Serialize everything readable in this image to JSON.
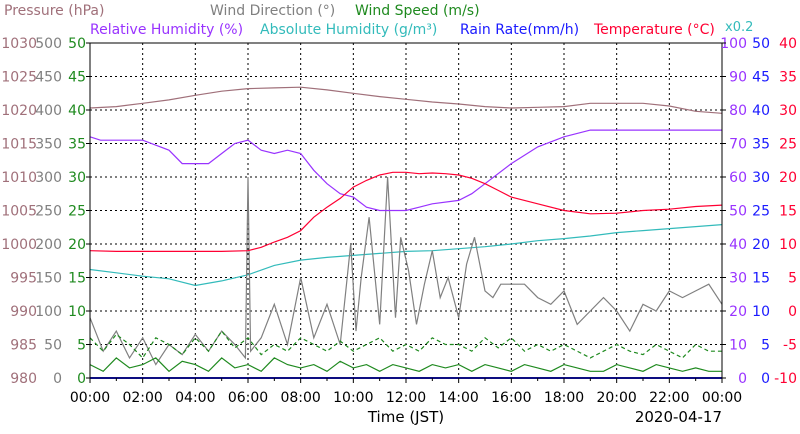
{
  "chart_data": {
    "type": "line",
    "date": "2020-04-17",
    "xlabel": "Time (JST)",
    "x_ticks": [
      "00:00",
      "02:00",
      "04:00",
      "06:00",
      "08:00",
      "10:00",
      "12:00",
      "14:00",
      "16:00",
      "18:00",
      "20:00",
      "22:00",
      "00:00"
    ],
    "x_range_hours": [
      0,
      24
    ],
    "grid": true,
    "legend_title_line1": [
      {
        "key": "pressure",
        "text": "Pressure (hPa)",
        "color": "#a0707a"
      },
      {
        "key": "wind_dir",
        "text": "Wind Direction (°)",
        "color": "#808080"
      },
      {
        "key": "wind_speed",
        "text": "Wind Speed (m/s)",
        "color": "#1f8a1f"
      }
    ],
    "legend_title_line2": [
      {
        "key": "rh",
        "text": "Relative Humidity (%)",
        "color": "#9933ff"
      },
      {
        "key": "ah",
        "text": "Absolute Humidity (g/m³)",
        "color": "#33bbbb"
      },
      {
        "key": "rain",
        "text": "Rain Rate(mm/h)",
        "color": "#1a1aff"
      },
      {
        "key": "temp",
        "text": "Temperature (°C)",
        "color": "#ff0033"
      }
    ],
    "rain_multiplier_label": "x0.2",
    "axes": {
      "pressure": {
        "min": 980,
        "max": 1030,
        "ticks": [
          "1030",
          "1025",
          "1020",
          "1015",
          "1010",
          "1005",
          "1000",
          "995",
          "990",
          "985",
          "980"
        ],
        "color": "#a0707a"
      },
      "wind_dir": {
        "min": 0,
        "max": 500,
        "ticks": [
          "500",
          "450",
          "400",
          "350",
          "300",
          "250",
          "200",
          "150",
          "100",
          "50",
          "0"
        ],
        "color": "#808080"
      },
      "wind_speed": {
        "min": 0,
        "max": 50,
        "ticks": [
          "50",
          "45",
          "40",
          "35",
          "30",
          "25",
          "20",
          "15",
          "10",
          "5",
          "0"
        ],
        "color": "#1f8a1f"
      },
      "rh": {
        "min": 0,
        "max": 100,
        "ticks": [
          "100",
          "90",
          "80",
          "70",
          "60",
          "50",
          "40",
          "30",
          "20",
          "10",
          "0"
        ],
        "color": "#9933ff"
      },
      "rain": {
        "min": 0,
        "max": 50,
        "ticks": [
          "50",
          "45",
          "40",
          "35",
          "30",
          "25",
          "20",
          "15",
          "10",
          "5",
          "0"
        ],
        "color": "#1a1aff"
      },
      "temp": {
        "min": -10,
        "max": 40,
        "ticks": [
          "40",
          "35",
          "30",
          "25",
          "20",
          "15",
          "10",
          "5",
          "0",
          "-5",
          "-10"
        ],
        "color": "#ff0033"
      }
    },
    "series": [
      {
        "key": "pressure",
        "name": "Pressure (hPa)",
        "color": "#a0707a",
        "x": [
          0,
          1,
          2,
          3,
          4,
          5,
          6,
          7,
          8,
          9,
          10,
          11,
          12,
          13,
          14,
          15,
          16,
          17,
          18,
          19,
          20,
          21,
          22,
          23,
          24
        ],
        "y": [
          1020.3,
          1020.5,
          1021.0,
          1021.5,
          1022.2,
          1022.8,
          1023.2,
          1023.3,
          1023.4,
          1023.0,
          1022.5,
          1022.0,
          1021.6,
          1021.2,
          1020.9,
          1020.5,
          1020.3,
          1020.4,
          1020.5,
          1021.0,
          1021.0,
          1021.0,
          1020.6,
          1019.8,
          1019.5
        ]
      },
      {
        "key": "rh",
        "name": "Relative Humidity (%)",
        "color": "#9933ff",
        "x": [
          0,
          0.4,
          1,
          2,
          3,
          3.5,
          4.5,
          5,
          5.5,
          6,
          6.5,
          7,
          7.5,
          8,
          8.5,
          9,
          9.5,
          10,
          10.5,
          11,
          11.5,
          12,
          12.5,
          13,
          14,
          14.5,
          15,
          16,
          17,
          18,
          19,
          20,
          21,
          22,
          23,
          24
        ],
        "y": [
          72,
          71,
          71,
          71,
          68,
          64,
          64,
          67,
          70,
          71,
          68,
          67,
          68,
          67,
          62,
          58,
          55,
          54,
          51,
          50,
          50,
          50,
          51,
          52,
          53,
          55,
          58,
          64,
          69,
          72,
          74,
          74,
          74,
          74,
          74,
          74
        ]
      },
      {
        "key": "temp",
        "name": "Temperature (°C)",
        "color": "#ff0033",
        "x": [
          0,
          1,
          2,
          3,
          4,
          5,
          6,
          6.5,
          7,
          7.5,
          8,
          8.5,
          9,
          9.5,
          10,
          10.5,
          11,
          11.5,
          12,
          12.5,
          13,
          13.5,
          14,
          14.5,
          15,
          15.5,
          16,
          17,
          18,
          19,
          20,
          21,
          22,
          23,
          24
        ],
        "y": [
          9,
          8.9,
          8.9,
          8.9,
          8.9,
          8.9,
          9,
          9.5,
          10.3,
          11,
          12,
          14,
          15.5,
          16.8,
          18.5,
          19.5,
          20.3,
          20.7,
          20.7,
          20.5,
          20.6,
          20.5,
          20.3,
          19.8,
          19,
          18,
          17,
          16,
          15,
          14.5,
          14.6,
          15,
          15.2,
          15.6,
          15.8
        ]
      },
      {
        "key": "ah",
        "name": "Absolute Humidity (g/m³)",
        "color": "#33bbbb",
        "x": [
          0,
          1,
          2,
          3,
          4,
          5,
          6,
          7,
          8,
          9,
          10,
          11,
          12,
          13,
          14,
          15,
          16,
          17,
          18,
          19,
          20,
          21,
          22,
          23,
          24
        ],
        "y": [
          16.2,
          15.7,
          15.2,
          14.8,
          13.8,
          14.5,
          15.4,
          16.8,
          17.6,
          18.0,
          18.3,
          18.6,
          18.9,
          19.0,
          19.3,
          19.6,
          20.0,
          20.5,
          20.8,
          21.2,
          21.7,
          22.0,
          22.3,
          22.6,
          22.9
        ]
      },
      {
        "key": "wind_dir",
        "name": "Wind Direction (°)",
        "color": "#808080",
        "x": [
          0,
          0.5,
          1,
          1.5,
          2,
          2.5,
          3,
          3.5,
          4,
          4.5,
          5,
          5.5,
          5.9,
          6.0,
          6.1,
          6.5,
          7,
          7.5,
          8,
          8.5,
          9,
          9.5,
          9.9,
          10.1,
          10.3,
          10.6,
          11,
          11.3,
          11.6,
          11.8,
          12.1,
          12.4,
          12.7,
          13,
          13.3,
          13.6,
          14,
          14.3,
          14.6,
          15,
          15.3,
          15.6,
          16,
          16.5,
          17,
          17.5,
          18,
          18.5,
          19,
          19.5,
          20,
          20.5,
          21,
          21.5,
          22,
          22.5,
          23,
          23.5,
          24
        ],
        "y": [
          90,
          40,
          70,
          30,
          60,
          20,
          50,
          35,
          65,
          40,
          70,
          50,
          30,
          300,
          40,
          60,
          110,
          50,
          150,
          60,
          110,
          50,
          200,
          70,
          150,
          240,
          80,
          300,
          90,
          210,
          160,
          80,
          140,
          190,
          120,
          150,
          90,
          170,
          210,
          130,
          120,
          140,
          140,
          140,
          120,
          110,
          130,
          80,
          100,
          120,
          100,
          70,
          110,
          100,
          130,
          120,
          130,
          140,
          110
        ]
      },
      {
        "key": "wind_speed",
        "name": "Wind Speed (m/s)",
        "color": "#1f8a1f",
        "style": "solid",
        "x": [
          0,
          0.5,
          1,
          1.5,
          2,
          2.5,
          3,
          3.5,
          4,
          4.5,
          5,
          5.5,
          6,
          6.5,
          7,
          7.5,
          8,
          8.5,
          9,
          9.5,
          10,
          10.5,
          11,
          11.5,
          12,
          12.5,
          13,
          13.5,
          14,
          14.5,
          15,
          15.5,
          16,
          16.5,
          17,
          17.5,
          18,
          18.5,
          19,
          19.5,
          20,
          20.5,
          21,
          21.5,
          22,
          22.5,
          23,
          23.5,
          24
        ],
        "y": [
          2,
          1,
          3,
          1.5,
          2,
          3,
          1,
          2.5,
          2,
          1,
          3,
          1.5,
          2,
          1,
          3,
          2,
          1.5,
          2,
          1,
          2.5,
          1.5,
          2,
          1,
          2,
          1.5,
          1,
          2,
          1.5,
          2,
          1,
          2,
          1.5,
          1,
          2,
          1.5,
          1,
          2,
          1.5,
          1,
          1,
          2,
          1.5,
          1,
          2,
          1.5,
          1,
          1.5,
          1,
          1
        ]
      },
      {
        "key": "wind_gust",
        "name": "Wind Speed (m/s)",
        "color": "#1f8a1f",
        "style": "dashed",
        "x": [
          0,
          0.5,
          1,
          1.5,
          2,
          2.5,
          3,
          3.5,
          4,
          4.5,
          5,
          5.5,
          6,
          6.5,
          7,
          7.5,
          8,
          8.5,
          9,
          9.5,
          10,
          10.5,
          11,
          11.5,
          12,
          12.5,
          13,
          13.5,
          14,
          14.5,
          15,
          15.5,
          16,
          16.5,
          17,
          17.5,
          18,
          18.5,
          19,
          19.5,
          20,
          20.5,
          21,
          21.5,
          22,
          22.5,
          23,
          23.5,
          24
        ],
        "y": [
          6,
          4,
          6.5,
          5,
          3,
          6,
          5,
          3.5,
          6,
          4,
          7,
          4.5,
          6,
          3.5,
          5,
          4,
          6,
          5,
          4,
          5.5,
          4,
          5,
          6,
          4,
          5,
          4,
          6,
          5,
          5,
          4,
          6,
          4.5,
          6,
          4,
          5,
          4,
          5,
          4,
          3,
          4,
          5,
          4,
          3.5,
          5,
          4,
          3,
          5,
          4,
          4
        ]
      },
      {
        "key": "rain",
        "name": "Rain Rate(mm/h)",
        "color": "#1a1aff",
        "x": [
          0,
          24
        ],
        "y": [
          0,
          0
        ]
      }
    ]
  }
}
